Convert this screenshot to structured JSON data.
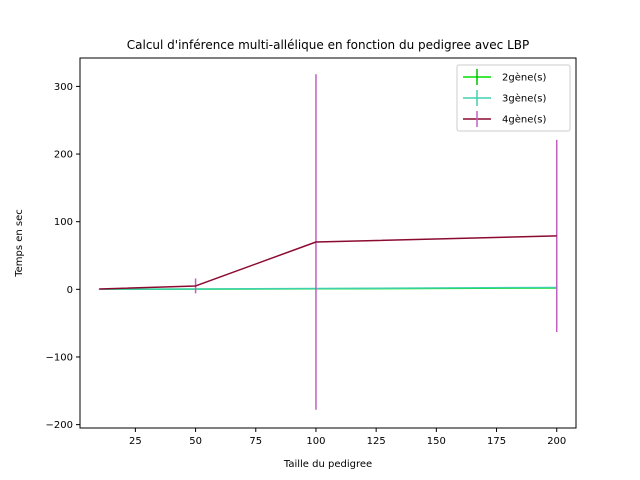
{
  "chart_data": {
    "type": "line",
    "title": "Calcul d'inférence multi-allélique en fonction du pedigree avec LBP",
    "xlabel": "Taille du pedigree",
    "ylabel": "Temps en sec",
    "xlim": [
      2,
      208
    ],
    "ylim": [
      -205,
      342
    ],
    "xticks": [
      25,
      50,
      75,
      100,
      125,
      150,
      175,
      200
    ],
    "yticks": [
      -200,
      -100,
      0,
      100,
      200,
      300
    ],
    "grid": false,
    "legend_position": "top-right",
    "series": [
      {
        "name": "2gène(s)",
        "color": "#00e000",
        "error_color": "#00c000",
        "x": [
          10,
          50,
          100,
          200
        ],
        "y": [
          0.1,
          0.3,
          0.8,
          2.0
        ],
        "yerr": [
          0.05,
          0.1,
          0.3,
          0.5
        ]
      },
      {
        "name": "3gène(s)",
        "color": "#40d0b0",
        "error_color": "#40d0b0",
        "x": [
          10,
          50,
          100,
          200
        ],
        "y": [
          0.2,
          0.5,
          1.2,
          2.8
        ],
        "yerr": [
          0.1,
          0.6,
          0.8,
          1.0
        ]
      },
      {
        "name": "4gène(s)",
        "color": "#8b0a30",
        "error_color": "#c060c0",
        "x": [
          10,
          50,
          100,
          200
        ],
        "y": [
          0.5,
          5,
          70,
          79
        ],
        "yerr": [
          0.5,
          11,
          248,
          142
        ]
      }
    ]
  }
}
